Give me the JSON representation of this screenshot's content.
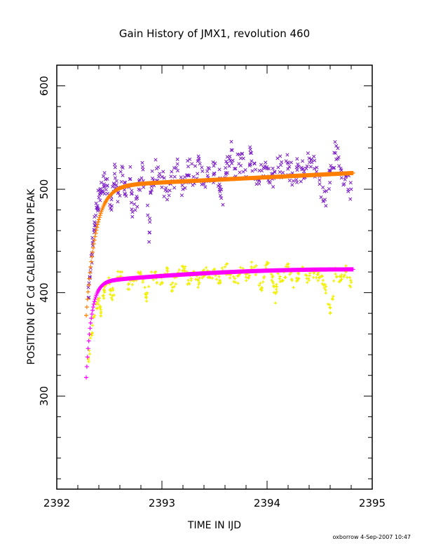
{
  "chart_data": {
    "type": "scatter",
    "title": "Gain History of JMX1, revolution 460",
    "xlabel": "TIME IN IJD",
    "ylabel": "POSITION OF Cd CALIBRATION PEAK",
    "xlim": [
      2392,
      2395
    ],
    "ylim": [
      210,
      620
    ],
    "x_ticks": [
      2392,
      2393,
      2394,
      2395
    ],
    "x_tick_labels": [
      "2392",
      "2393",
      "2394",
      "2395"
    ],
    "y_ticks": [
      300,
      400,
      500,
      600
    ],
    "y_tick_labels": [
      "300",
      "400",
      "500",
      "600"
    ],
    "grid": false,
    "legend": "none",
    "x_start": 2392.28,
    "x_end": 2394.82,
    "series": [
      {
        "marker": "x",
        "color": "#7b1fc8",
        "kind": "measured",
        "points": [
          [
            2392.3,
            395
          ],
          [
            2392.32,
            420
          ],
          [
            2392.34,
            448
          ],
          [
            2392.36,
            465
          ],
          [
            2392.38,
            482
          ],
          [
            2392.4,
            492
          ],
          [
            2392.42,
            498
          ],
          [
            2392.45,
            505
          ],
          [
            2392.48,
            510
          ],
          [
            2392.52,
            480
          ],
          [
            2392.55,
            515
          ],
          [
            2392.58,
            488
          ],
          [
            2392.62,
            522
          ],
          [
            2392.65,
            495
          ],
          [
            2392.7,
            510
          ],
          [
            2392.72,
            478
          ],
          [
            2392.78,
            500
          ],
          [
            2392.82,
            519
          ],
          [
            2392.88,
            458
          ],
          [
            2392.9,
            505
          ],
          [
            2392.95,
            520
          ],
          [
            2393.0,
            512
          ],
          [
            2393.05,
            490
          ],
          [
            2393.1,
            508
          ],
          [
            2393.15,
            518
          ],
          [
            2393.2,
            500
          ],
          [
            2393.25,
            522
          ],
          [
            2393.3,
            512
          ],
          [
            2393.35,
            528
          ],
          [
            2393.4,
            505
          ],
          [
            2393.45,
            520
          ],
          [
            2393.5,
            515
          ],
          [
            2393.55,
            510
          ],
          [
            2393.58,
            485
          ],
          [
            2393.62,
            525
          ],
          [
            2393.66,
            538
          ],
          [
            2393.7,
            520
          ],
          [
            2393.75,
            530
          ],
          [
            2393.8,
            512
          ],
          [
            2393.85,
            535
          ],
          [
            2393.9,
            505
          ],
          [
            2393.95,
            518
          ],
          [
            2394.0,
            520
          ],
          [
            2394.05,
            510
          ],
          [
            2394.1,
            530
          ],
          [
            2394.15,
            516
          ],
          [
            2394.2,
            525
          ],
          [
            2394.25,
            508
          ],
          [
            2394.3,
            522
          ],
          [
            2394.35,
            515
          ],
          [
            2394.4,
            530
          ],
          [
            2394.45,
            520
          ],
          [
            2394.5,
            505
          ],
          [
            2394.55,
            490
          ],
          [
            2394.6,
            518
          ],
          [
            2394.65,
            535
          ],
          [
            2394.7,
            520
          ],
          [
            2394.75,
            512
          ],
          [
            2394.8,
            500
          ]
        ]
      },
      {
        "marker": "+",
        "color": "#f0f000",
        "kind": "measured",
        "points": [
          [
            2392.3,
            335
          ],
          [
            2392.33,
            360
          ],
          [
            2392.36,
            378
          ],
          [
            2392.4,
            392
          ],
          [
            2392.42,
            380
          ],
          [
            2392.45,
            402
          ],
          [
            2392.5,
            410
          ],
          [
            2392.52,
            395
          ],
          [
            2392.58,
            415
          ],
          [
            2392.62,
            420
          ],
          [
            2392.68,
            408
          ],
          [
            2392.72,
            412
          ],
          [
            2392.8,
            418
          ],
          [
            2392.85,
            395
          ],
          [
            2392.9,
            420
          ],
          [
            2392.95,
            415
          ],
          [
            2393.0,
            410
          ],
          [
            2393.05,
            422
          ],
          [
            2393.1,
            405
          ],
          [
            2393.15,
            418
          ],
          [
            2393.2,
            425
          ],
          [
            2393.25,
            412
          ],
          [
            2393.3,
            420
          ],
          [
            2393.35,
            408
          ],
          [
            2393.4,
            422
          ],
          [
            2393.45,
            415
          ],
          [
            2393.5,
            420
          ],
          [
            2393.55,
            412
          ],
          [
            2393.6,
            425
          ],
          [
            2393.65,
            418
          ],
          [
            2393.7,
            410
          ],
          [
            2393.75,
            420
          ],
          [
            2393.8,
            415
          ],
          [
            2393.85,
            425
          ],
          [
            2393.9,
            420
          ],
          [
            2393.95,
            405
          ],
          [
            2394.0,
            428
          ],
          [
            2394.05,
            415
          ],
          [
            2394.08,
            390
          ],
          [
            2394.1,
            420
          ],
          [
            2394.15,
            412
          ],
          [
            2394.2,
            425
          ],
          [
            2394.25,
            405
          ],
          [
            2394.3,
            418
          ],
          [
            2394.35,
            422
          ],
          [
            2394.4,
            412
          ],
          [
            2394.45,
            420
          ],
          [
            2394.5,
            415
          ],
          [
            2394.55,
            408
          ],
          [
            2394.6,
            380
          ],
          [
            2394.65,
            418
          ],
          [
            2394.7,
            412
          ],
          [
            2394.75,
            420
          ],
          [
            2394.8,
            410
          ]
        ]
      },
      {
        "marker": "+",
        "color": "#ff7f00",
        "kind": "model",
        "model_formula": "A - B*exp(-(x - x0)/tau1) + C*(x - x0)",
        "x0": 2392.28,
        "A": 503,
        "B": 125,
        "tau1": 0.09,
        "C": 5
      },
      {
        "marker": "+",
        "color": "#ff00ff",
        "kind": "model",
        "model_formula": "A - B*exp(-(x - x0)/tau1) + C*(x - x0) - D*(x - x0)^2",
        "x0": 2392.28,
        "A": 410,
        "B": 92,
        "tau1": 0.05,
        "C": 10,
        "D": 2
      }
    ]
  },
  "footer": {
    "credit": "oxborrow  4-Sep-2007 10:47"
  }
}
